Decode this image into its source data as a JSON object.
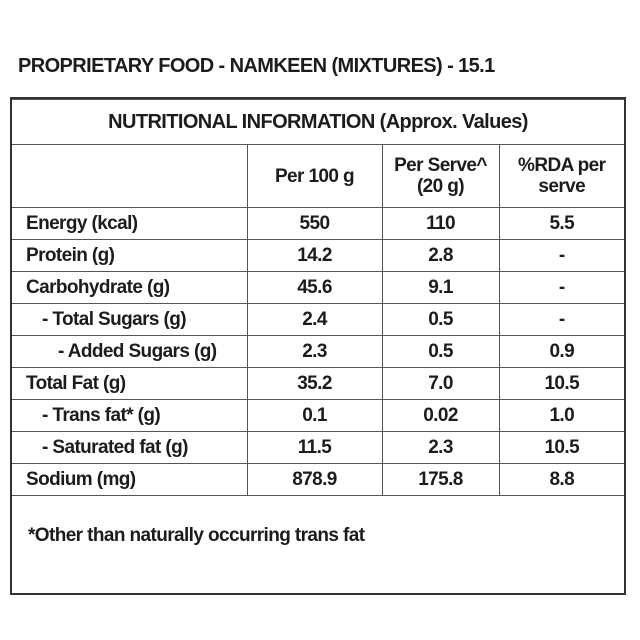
{
  "header": {
    "title": "PROPRIETARY FOOD - NAMKEEN (MIXTURES) - 15.1"
  },
  "table": {
    "title": "NUTRITIONAL INFORMATION (Approx. Values)",
    "columns": [
      "Per 100 g",
      "Per Serve^ (20 g)",
      "%RDA per serve"
    ],
    "rows": [
      [
        "Energy (kcal)",
        "550",
        "110",
        "5.5"
      ],
      [
        "Protein (g)",
        "14.2",
        "2.8",
        "-"
      ],
      [
        "Carbohydrate (g)",
        "45.6",
        "9.1",
        "-"
      ],
      [
        "- Total Sugars (g)",
        "2.4",
        "0.5",
        "-"
      ],
      [
        "- Added Sugars (g)",
        "2.3",
        "0.5",
        "0.9"
      ],
      [
        "Total Fat (g)",
        "35.2",
        "7.0",
        "10.5"
      ],
      [
        "- Trans fat* (g)",
        "0.1",
        "0.02",
        "1.0"
      ],
      [
        "- Saturated fat (g)",
        "11.5",
        "2.3",
        "10.5"
      ],
      [
        "Sodium (mg)",
        "878.9",
        "175.8",
        "8.8"
      ]
    ],
    "footnote": "*Other than naturally occurring trans fat"
  }
}
